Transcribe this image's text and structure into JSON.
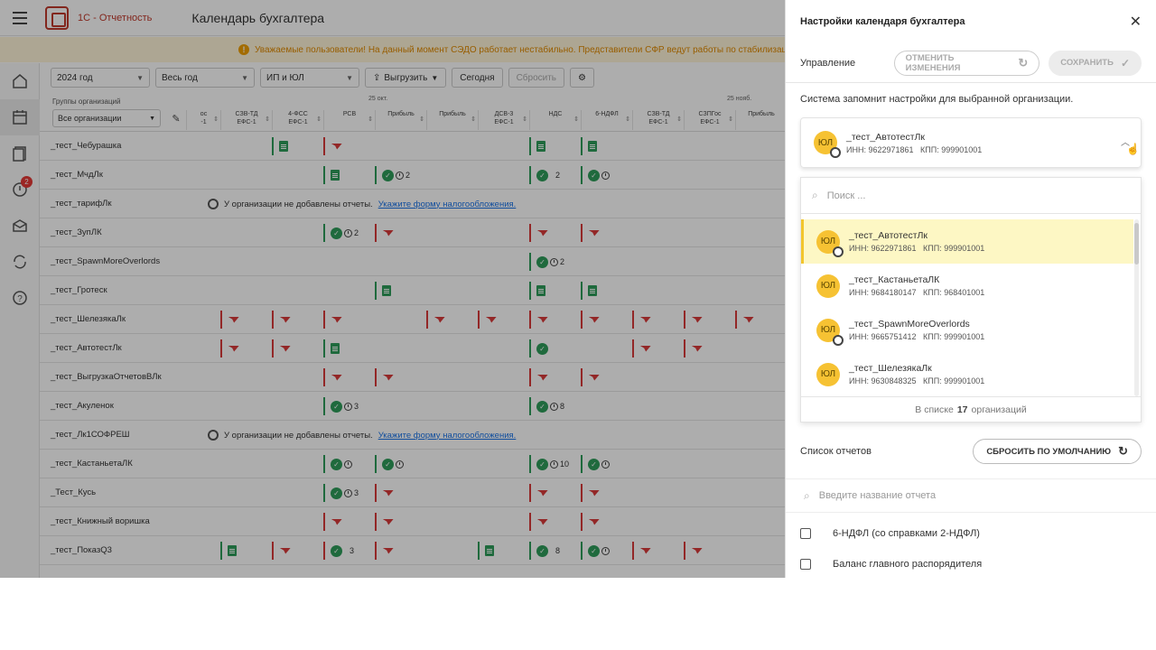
{
  "app": {
    "brand": "1С - Отчетность",
    "page_title": "Календарь бухгалтера"
  },
  "banner": {
    "text": "Уважаемые пользователи! На данный момент СЭДО работает нестабильно. Представители СФР ведут работы по стабилизации, то"
  },
  "sidebar": {
    "items": [
      {
        "icon": "home-icon"
      },
      {
        "icon": "calendar-icon"
      },
      {
        "icon": "documents-icon"
      },
      {
        "icon": "alert-icon",
        "badge": "2"
      },
      {
        "icon": "mail-icon"
      },
      {
        "icon": "sync-icon"
      },
      {
        "icon": "help-icon"
      }
    ]
  },
  "toolbar": {
    "year": "2024 год",
    "period": "Весь год",
    "type": "ИП и ЮЛ",
    "export": "Выгрузить",
    "today": "Сегодня",
    "reset": "Сбросить"
  },
  "grid": {
    "groups_label": "Группы организаций",
    "groups_value": "Все организации",
    "dates": [
      "25 окт.",
      "25 нояб."
    ],
    "columns": [
      "ос\n-1",
      "СЗВ-ТД\nЕФС-1",
      "4-ФСС\nЕФС-1",
      "РСВ",
      "Прибыль",
      "Прибыль",
      "ДСВ-3\nЕФС-1",
      "НДС",
      "6-НДФЛ",
      "СЗВ-ТД\nЕФС-1",
      "СЗПГос\nЕФС-1",
      "Прибыль"
    ],
    "no_reports_msg": "У организации не добавлены отчеты.",
    "no_reports_link": "Укажите форму налогообложения.",
    "rows": [
      {
        "name": "_тест_Чебурашка"
      },
      {
        "name": "_тест_МчдЛк"
      },
      {
        "name": "_тест_тарифЛк"
      },
      {
        "name": "_тест_ЗупЛК"
      },
      {
        "name": "_тест_SpawnMoreOverlords"
      },
      {
        "name": "_тест_Гротеск"
      },
      {
        "name": "_тест_ШелезякаЛк"
      },
      {
        "name": "_тест_АвтотестЛк"
      },
      {
        "name": "_тест_ВыгрузкаОтчетовВЛк"
      },
      {
        "name": "_тест_Акуленок"
      },
      {
        "name": "_тест_Лк1СОФРЕШ"
      },
      {
        "name": "_тест_КастаньетаЛК"
      },
      {
        "name": "_Тест_Кусь"
      },
      {
        "name": "_тест_Книжный воришка"
      },
      {
        "name": "_тест_ПоказQ3"
      }
    ],
    "counts": {
      "mchd_profit": "2",
      "mchd_nds": "2",
      "zup_rsv": "2",
      "spawn_nds": "2",
      "akul_rsv": "3",
      "akul_nds": "8",
      "kast_nds": "10",
      "kus_rsv": "3",
      "pokaz_rsv": "3",
      "pokaz_nds": "8"
    }
  },
  "panel": {
    "title": "Настройки календаря бухгалтера",
    "mgmt_label": "Управление",
    "cancel_changes": "ОТМЕНИТЬ ИЗМЕНЕНИЯ",
    "save": "СОХРАНИТЬ",
    "note": "Система запомнит настройки для выбранной организации.",
    "selected_org": {
      "avatar": "ЮЛ",
      "name": "_тест_АвтотестЛк",
      "inn": "ИНН: 9622971861",
      "kpp": "КПП: 999901001"
    },
    "search_placeholder": "Поиск ...",
    "orgs": [
      {
        "avatar": "ЮЛ",
        "name": "_тест_АвтотестЛк",
        "inn": "ИНН: 9622971861",
        "kpp": "КПП: 999901001"
      },
      {
        "avatar": "ЮЛ",
        "name": "_тест_КастаньетаЛК",
        "inn": "ИНН: 9684180147",
        "kpp": "КПП: 968401001"
      },
      {
        "avatar": "ЮЛ",
        "name": "_тест_SpawnMoreOverlords",
        "inn": "ИНН: 9665751412",
        "kpp": "КПП: 999901001"
      },
      {
        "avatar": "ЮЛ",
        "name": "_тест_ШелезякаЛк",
        "inn": "ИНН: 9630848325",
        "kpp": "КПП: 999901001"
      }
    ],
    "list_foot_prefix": "В списке",
    "list_foot_count": "17",
    "list_foot_suffix": "организаций",
    "reports_label": "Список отчетов",
    "reset_default": "СБРОСИТЬ ПО УМОЛЧАНИЮ",
    "report_search_placeholder": "Введите название отчета",
    "reports": [
      "6-НДФЛ (со справками 2-НДФЛ)",
      "Баланс главного распорядителя"
    ]
  }
}
